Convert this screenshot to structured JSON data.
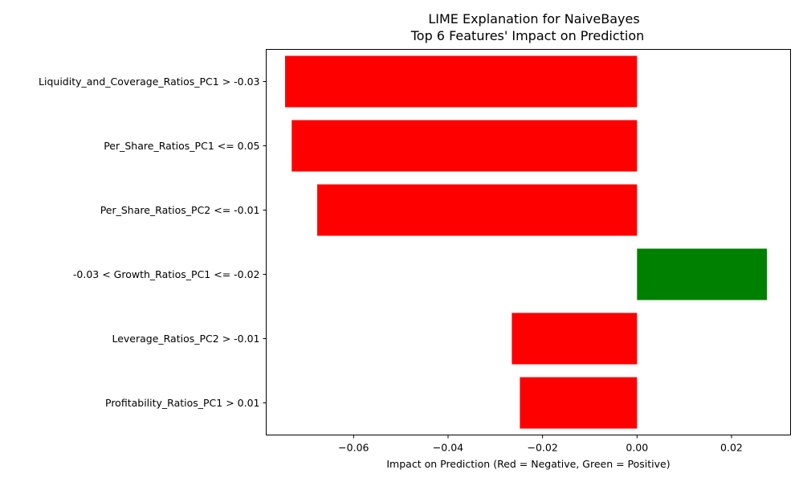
{
  "chart_data": {
    "type": "bar",
    "orientation": "horizontal",
    "title": "LIME Explanation for NaiveBayes",
    "subtitle": "Top 6 Features' Impact on Prediction",
    "xlabel": "Impact on Prediction (Red = Negative, Green = Positive)",
    "ylabel": "",
    "xlim": [
      -0.0785,
      0.0325
    ],
    "xticks": [
      -0.06,
      -0.04,
      -0.02,
      0.0,
      0.02
    ],
    "xtick_labels": [
      "−0.06",
      "−0.04",
      "−0.02",
      "0.00",
      "0.02"
    ],
    "categories": [
      "Liquidity_and_Coverage_Ratios_PC1 > -0.03",
      "Per_Share_Ratios_PC1 <= 0.05",
      "Per_Share_Ratios_PC2 <= -0.01",
      "-0.03 < Growth_Ratios_PC1 <= -0.02",
      "Leverage_Ratios_PC2 > -0.01",
      "Profitability_Ratios_PC1 > 0.01"
    ],
    "values": [
      -0.0745,
      -0.0731,
      -0.0677,
      0.0275,
      -0.0265,
      -0.0248
    ],
    "colors": {
      "negative": "#ff0000",
      "positive": "#008000"
    },
    "grid": false,
    "legend": "none"
  }
}
